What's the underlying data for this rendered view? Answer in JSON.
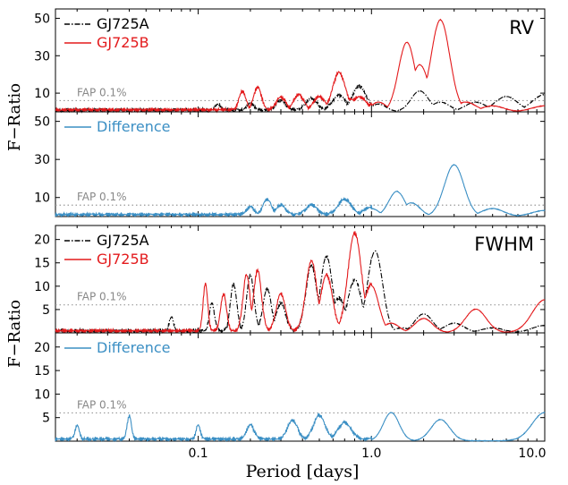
{
  "chart_data": [
    {
      "type": "line",
      "panel_label": "RV",
      "ylabel": "F−Ratio",
      "ylim": [
        0,
        55
      ],
      "yticks": [
        10,
        30,
        50
      ],
      "x_scale": "log",
      "xlim": [
        0.015,
        10
      ],
      "fap_label": "FAP 0.1%",
      "fap_value": 6,
      "legend_position": "top-left",
      "series": [
        {
          "name": "GJ725A",
          "color": "#000000",
          "style": "dashdot",
          "peaks": [
            [
              0.13,
              3
            ],
            [
              0.2,
              3.5
            ],
            [
              0.3,
              5
            ],
            [
              0.45,
              6
            ],
            [
              0.65,
              8
            ],
            [
              0.85,
              12.5
            ],
            [
              1.1,
              4
            ],
            [
              1.9,
              11
            ],
            [
              2.5,
              5
            ],
            [
              4,
              5
            ],
            [
              6,
              8
            ],
            [
              10,
              9
            ]
          ]
        },
        {
          "name": "GJ725B",
          "color": "#e31a1c",
          "style": "solid",
          "peaks": [
            [
              0.18,
              10
            ],
            [
              0.22,
              12
            ],
            [
              0.3,
              7
            ],
            [
              0.38,
              8
            ],
            [
              0.5,
              7
            ],
            [
              0.65,
              20
            ],
            [
              0.75,
              6
            ],
            [
              0.85,
              7
            ],
            [
              1.1,
              5
            ],
            [
              1.6,
              37
            ],
            [
              1.9,
              25
            ],
            [
              2.5,
              49
            ],
            [
              3.5,
              5
            ],
            [
              5,
              3
            ],
            [
              10,
              3
            ]
          ]
        }
      ]
    },
    {
      "type": "line",
      "panel_label": "",
      "ylabel": "F−Ratio",
      "ylim": [
        0,
        55
      ],
      "yticks": [
        10,
        30,
        50
      ],
      "x_scale": "log",
      "xlim": [
        0.015,
        10
      ],
      "fap_label": "FAP 0.1%",
      "fap_value": 6,
      "legend_position": "top-left",
      "series": [
        {
          "name": "Difference",
          "color": "#3b8fc4",
          "style": "solid",
          "peaks": [
            [
              0.2,
              4
            ],
            [
              0.25,
              8
            ],
            [
              0.3,
              5
            ],
            [
              0.45,
              5
            ],
            [
              0.7,
              8
            ],
            [
              1.0,
              4
            ],
            [
              1.4,
              13
            ],
            [
              1.7,
              7
            ],
            [
              3.0,
              27
            ],
            [
              5,
              4
            ],
            [
              10,
              3
            ]
          ]
        }
      ]
    },
    {
      "type": "line",
      "panel_label": "FWHM",
      "ylabel": "F−Ratio",
      "ylim": [
        0,
        23
      ],
      "yticks": [
        5,
        10,
        15,
        20
      ],
      "x_scale": "log",
      "xlim": [
        0.015,
        10
      ],
      "fap_label": "FAP 0.1%",
      "fap_value": 6,
      "legend_position": "top-left",
      "series": [
        {
          "name": "GJ725A",
          "color": "#000000",
          "style": "dashdot",
          "peaks": [
            [
              0.07,
              3
            ],
            [
              0.12,
              6
            ],
            [
              0.16,
              10
            ],
            [
              0.2,
              12
            ],
            [
              0.25,
              9
            ],
            [
              0.3,
              6
            ],
            [
              0.45,
              14
            ],
            [
              0.55,
              16
            ],
            [
              0.65,
              7
            ],
            [
              0.8,
              11
            ],
            [
              1.05,
              17.5
            ],
            [
              1.5,
              1
            ],
            [
              2.0,
              4
            ],
            [
              3,
              2
            ],
            [
              5,
              1
            ],
            [
              10,
              1.5
            ]
          ]
        },
        {
          "name": "GJ725B",
          "color": "#e31a1c",
          "style": "solid",
          "peaks": [
            [
              0.11,
              10
            ],
            [
              0.14,
              8
            ],
            [
              0.19,
              12
            ],
            [
              0.22,
              13
            ],
            [
              0.3,
              8
            ],
            [
              0.45,
              15
            ],
            [
              0.55,
              12
            ],
            [
              0.8,
              21
            ],
            [
              1.0,
              10
            ],
            [
              1.3,
              2
            ],
            [
              2,
              3
            ],
            [
              4,
              5
            ],
            [
              10,
              7
            ]
          ]
        }
      ]
    },
    {
      "type": "line",
      "panel_label": "",
      "ylabel": "F−Ratio",
      "ylim": [
        0,
        23
      ],
      "yticks": [
        5,
        10,
        15,
        20
      ],
      "x_scale": "log",
      "xlim": [
        0.015,
        10
      ],
      "fap_label": "FAP 0.1%",
      "fap_value": 6,
      "legend_position": "top-left",
      "series": [
        {
          "name": "Difference",
          "color": "#3b8fc4",
          "style": "solid",
          "peaks": [
            [
              0.02,
              3
            ],
            [
              0.04,
              5
            ],
            [
              0.1,
              3
            ],
            [
              0.2,
              3
            ],
            [
              0.35,
              4
            ],
            [
              0.5,
              5
            ],
            [
              0.7,
              3.5
            ],
            [
              1.3,
              6
            ],
            [
              2.5,
              4.5
            ],
            [
              10,
              6
            ]
          ]
        }
      ]
    }
  ],
  "xlabel": "Period [days]",
  "xticks": [
    "0.1",
    "1.0",
    "10.0"
  ],
  "upper_ylabel": "F−Ratio",
  "lower_ylabel": "F−Ratio"
}
